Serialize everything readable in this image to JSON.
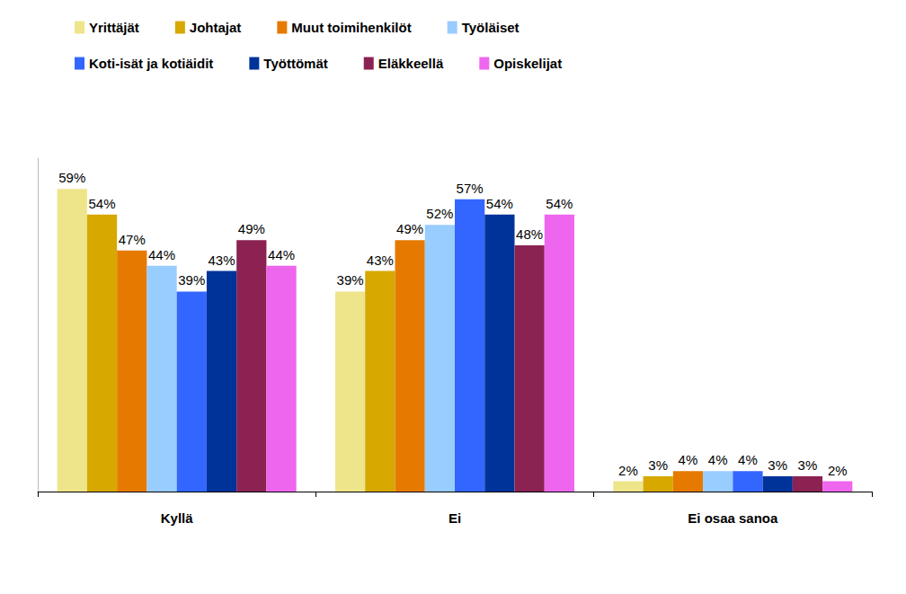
{
  "chart_data": {
    "type": "bar",
    "categories": [
      "Kyllä",
      "Ei",
      "Ei osaa sanoa"
    ],
    "series": [
      {
        "name": "Yrittäjät",
        "color": "#eee58a",
        "values": [
          59,
          39,
          2
        ],
        "value_labels": [
          "59%",
          "39%",
          "2%"
        ]
      },
      {
        "name": "Johtajat",
        "color": "#d6a800",
        "values": [
          54,
          43,
          3
        ],
        "value_labels": [
          "54%",
          "43%",
          "3%"
        ]
      },
      {
        "name": "Muut toimihenkilöt",
        "color": "#e67a00",
        "values": [
          47,
          49,
          4
        ],
        "value_labels": [
          "47%",
          "49%",
          "4%"
        ]
      },
      {
        "name": "Työläiset",
        "color": "#99ccff",
        "values": [
          44,
          52,
          4
        ],
        "value_labels": [
          "44%",
          "52%",
          "4%"
        ]
      },
      {
        "name": "Koti-isät ja kotiäidit",
        "color": "#3366ff",
        "values": [
          39,
          57,
          4
        ],
        "value_labels": [
          "39%",
          "57%",
          "4%"
        ]
      },
      {
        "name": "Työttömät",
        "color": "#003399",
        "values": [
          43,
          54,
          3
        ],
        "value_labels": [
          "43%",
          "54%",
          "3%"
        ]
      },
      {
        "name": "Eläkkeellä",
        "color": "#8b2252",
        "values": [
          49,
          48,
          3
        ],
        "value_labels": [
          "49%",
          "48%",
          "3%"
        ]
      },
      {
        "name": "Opiskelijat",
        "color": "#ee66ee",
        "values": [
          44,
          54,
          2
        ],
        "value_labels": [
          "44%",
          "54%",
          "2%"
        ]
      }
    ],
    "ylim": [
      0,
      65
    ],
    "tick_labels": "x",
    "grid": false,
    "legend": "top",
    "data_labels": true
  }
}
